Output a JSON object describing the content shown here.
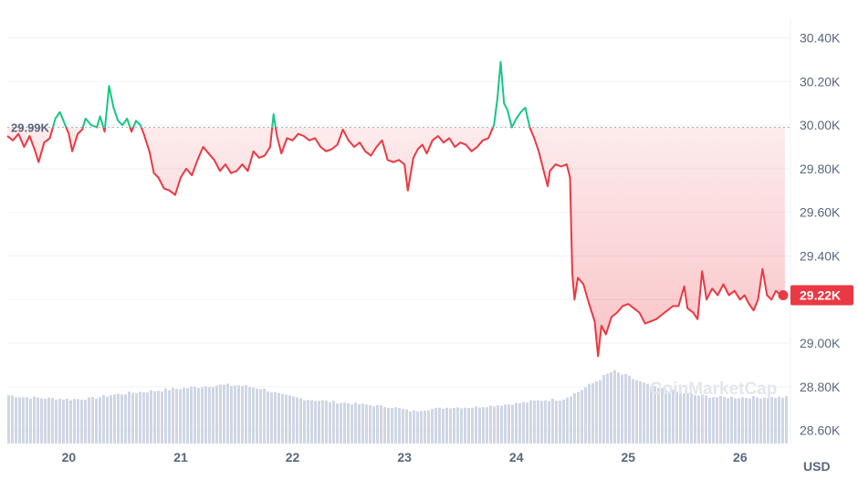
{
  "chart_data": {
    "type": "line",
    "unit_label": "USD",
    "watermark": "CoinMarketCap",
    "reference_label": "29.99K",
    "reference_value": 29990,
    "last_label": "29.22K",
    "last_value": 29220,
    "y_ticks": [
      {
        "value": 28600,
        "label": "28.60K"
      },
      {
        "value": 28800,
        "label": "28.80K"
      },
      {
        "value": 29000,
        "label": "29.00K"
      },
      {
        "value": 29200,
        "label": "29.20K"
      },
      {
        "value": 29400,
        "label": "29.40K"
      },
      {
        "value": 29600,
        "label": "29.60K"
      },
      {
        "value": 29800,
        "label": "29.80K"
      },
      {
        "value": 30000,
        "label": "30.00K"
      },
      {
        "value": 30200,
        "label": "30.20K"
      },
      {
        "value": 30400,
        "label": "30.40K"
      }
    ],
    "ylim": [
      28540,
      30490
    ],
    "xlim": [
      19.45,
      26.45
    ],
    "x_ticks": [
      {
        "value": 20,
        "label": "20"
      },
      {
        "value": 21,
        "label": "21"
      },
      {
        "value": 22,
        "label": "22"
      },
      {
        "value": 23,
        "label": "23"
      },
      {
        "value": 24,
        "label": "24"
      },
      {
        "value": 25,
        "label": "25"
      },
      {
        "value": 26,
        "label": "26"
      }
    ],
    "colors": {
      "up": "#16c784",
      "down": "#ea3943",
      "volume": "#cfd6e4",
      "grid": "#eff2f5",
      "reference": "#a6b0c3"
    },
    "series": [
      {
        "values": [
          [
            19.45,
            29950
          ],
          [
            19.5,
            29930
          ],
          [
            19.55,
            29960
          ],
          [
            19.6,
            29900
          ],
          [
            19.65,
            29950
          ],
          [
            19.7,
            29880
          ],
          [
            19.73,
            29830
          ],
          [
            19.78,
            29920
          ],
          [
            19.83,
            29940
          ],
          [
            19.88,
            30030
          ],
          [
            19.92,
            30060
          ],
          [
            19.96,
            30010
          ],
          [
            20.0,
            29960
          ],
          [
            20.03,
            29880
          ],
          [
            20.08,
            29960
          ],
          [
            20.12,
            29980
          ],
          [
            20.15,
            30030
          ],
          [
            20.2,
            30000
          ],
          [
            20.25,
            29990
          ],
          [
            20.28,
            30040
          ],
          [
            20.32,
            29970
          ],
          [
            20.36,
            30180
          ],
          [
            20.4,
            30080
          ],
          [
            20.44,
            30020
          ],
          [
            20.48,
            30000
          ],
          [
            20.52,
            30030
          ],
          [
            20.56,
            29970
          ],
          [
            20.6,
            30020
          ],
          [
            20.64,
            30000
          ],
          [
            20.67,
            29960
          ],
          [
            20.72,
            29880
          ],
          [
            20.76,
            29780
          ],
          [
            20.8,
            29760
          ],
          [
            20.85,
            29710
          ],
          [
            20.9,
            29700
          ],
          [
            20.95,
            29680
          ],
          [
            21.0,
            29760
          ],
          [
            21.05,
            29800
          ],
          [
            21.1,
            29770
          ],
          [
            21.15,
            29840
          ],
          [
            21.2,
            29900
          ],
          [
            21.25,
            29870
          ],
          [
            21.3,
            29840
          ],
          [
            21.35,
            29790
          ],
          [
            21.4,
            29820
          ],
          [
            21.45,
            29780
          ],
          [
            21.5,
            29790
          ],
          [
            21.55,
            29820
          ],
          [
            21.6,
            29790
          ],
          [
            21.65,
            29880
          ],
          [
            21.7,
            29850
          ],
          [
            21.75,
            29860
          ],
          [
            21.8,
            29900
          ],
          [
            21.83,
            30050
          ],
          [
            21.86,
            29950
          ],
          [
            21.9,
            29870
          ],
          [
            21.95,
            29940
          ],
          [
            22.0,
            29930
          ],
          [
            22.05,
            29960
          ],
          [
            22.1,
            29950
          ],
          [
            22.15,
            29930
          ],
          [
            22.2,
            29940
          ],
          [
            22.25,
            29900
          ],
          [
            22.3,
            29880
          ],
          [
            22.35,
            29890
          ],
          [
            22.4,
            29910
          ],
          [
            22.45,
            29980
          ],
          [
            22.5,
            29930
          ],
          [
            22.55,
            29900
          ],
          [
            22.6,
            29920
          ],
          [
            22.65,
            29880
          ],
          [
            22.7,
            29860
          ],
          [
            22.75,
            29900
          ],
          [
            22.8,
            29930
          ],
          [
            22.85,
            29840
          ],
          [
            22.9,
            29830
          ],
          [
            22.95,
            29840
          ],
          [
            23.0,
            29820
          ],
          [
            23.03,
            29700
          ],
          [
            23.08,
            29850
          ],
          [
            23.12,
            29890
          ],
          [
            23.16,
            29910
          ],
          [
            23.2,
            29870
          ],
          [
            23.25,
            29930
          ],
          [
            23.3,
            29950
          ],
          [
            23.35,
            29920
          ],
          [
            23.4,
            29940
          ],
          [
            23.45,
            29900
          ],
          [
            23.5,
            29920
          ],
          [
            23.55,
            29910
          ],
          [
            23.6,
            29880
          ],
          [
            23.65,
            29900
          ],
          [
            23.7,
            29930
          ],
          [
            23.75,
            29940
          ],
          [
            23.8,
            30000
          ],
          [
            23.83,
            30120
          ],
          [
            23.86,
            30290
          ],
          [
            23.89,
            30100
          ],
          [
            23.92,
            30070
          ],
          [
            23.96,
            29990
          ],
          [
            24.0,
            30030
          ],
          [
            24.04,
            30060
          ],
          [
            24.08,
            30080
          ],
          [
            24.12,
            29990
          ],
          [
            24.16,
            29940
          ],
          [
            24.2,
            29880
          ],
          [
            24.25,
            29780
          ],
          [
            24.28,
            29720
          ],
          [
            24.3,
            29790
          ],
          [
            24.35,
            29820
          ],
          [
            24.4,
            29810
          ],
          [
            24.45,
            29820
          ],
          [
            24.48,
            29760
          ],
          [
            24.5,
            29320
          ],
          [
            24.52,
            29200
          ],
          [
            24.55,
            29300
          ],
          [
            24.6,
            29270
          ],
          [
            24.65,
            29180
          ],
          [
            24.7,
            29100
          ],
          [
            24.73,
            28940
          ],
          [
            24.76,
            29080
          ],
          [
            24.8,
            29040
          ],
          [
            24.85,
            29120
          ],
          [
            24.9,
            29140
          ],
          [
            24.95,
            29170
          ],
          [
            25.0,
            29180
          ],
          [
            25.05,
            29160
          ],
          [
            25.1,
            29140
          ],
          [
            25.15,
            29090
          ],
          [
            25.2,
            29100
          ],
          [
            25.25,
            29110
          ],
          [
            25.3,
            29130
          ],
          [
            25.35,
            29150
          ],
          [
            25.4,
            29170
          ],
          [
            25.45,
            29170
          ],
          [
            25.5,
            29260
          ],
          [
            25.53,
            29160
          ],
          [
            25.58,
            29140
          ],
          [
            25.62,
            29110
          ],
          [
            25.66,
            29330
          ],
          [
            25.7,
            29200
          ],
          [
            25.75,
            29250
          ],
          [
            25.8,
            29220
          ],
          [
            25.85,
            29270
          ],
          [
            25.9,
            29220
          ],
          [
            25.95,
            29240
          ],
          [
            26.0,
            29200
          ],
          [
            26.04,
            29220
          ],
          [
            26.08,
            29180
          ],
          [
            26.12,
            29150
          ],
          [
            26.16,
            29200
          ],
          [
            26.2,
            29340
          ],
          [
            26.24,
            29220
          ],
          [
            26.28,
            29200
          ],
          [
            26.32,
            29240
          ],
          [
            26.36,
            29220
          ],
          [
            26.4,
            29220
          ]
        ]
      }
    ],
    "volume": [
      [
        19.45,
        0.48
      ],
      [
        19.6,
        0.46
      ],
      [
        19.8,
        0.45
      ],
      [
        20.0,
        0.44
      ],
      [
        20.2,
        0.45
      ],
      [
        20.35,
        0.48
      ],
      [
        20.5,
        0.5
      ],
      [
        20.7,
        0.52
      ],
      [
        20.9,
        0.54
      ],
      [
        21.1,
        0.56
      ],
      [
        21.3,
        0.58
      ],
      [
        21.5,
        0.58
      ],
      [
        21.7,
        0.55
      ],
      [
        21.9,
        0.48
      ],
      [
        22.1,
        0.44
      ],
      [
        22.3,
        0.42
      ],
      [
        22.5,
        0.4
      ],
      [
        22.7,
        0.38
      ],
      [
        22.9,
        0.36
      ],
      [
        23.05,
        0.32
      ],
      [
        23.2,
        0.34
      ],
      [
        23.4,
        0.36
      ],
      [
        23.6,
        0.36
      ],
      [
        23.8,
        0.38
      ],
      [
        24.0,
        0.4
      ],
      [
        24.2,
        0.43
      ],
      [
        24.4,
        0.44
      ],
      [
        24.55,
        0.52
      ],
      [
        24.7,
        0.62
      ],
      [
        24.85,
        0.72
      ],
      [
        25.0,
        0.66
      ],
      [
        25.2,
        0.56
      ],
      [
        25.4,
        0.52
      ],
      [
        25.6,
        0.48
      ],
      [
        25.8,
        0.46
      ],
      [
        26.0,
        0.46
      ],
      [
        26.2,
        0.46
      ],
      [
        26.4,
        0.46
      ]
    ]
  }
}
